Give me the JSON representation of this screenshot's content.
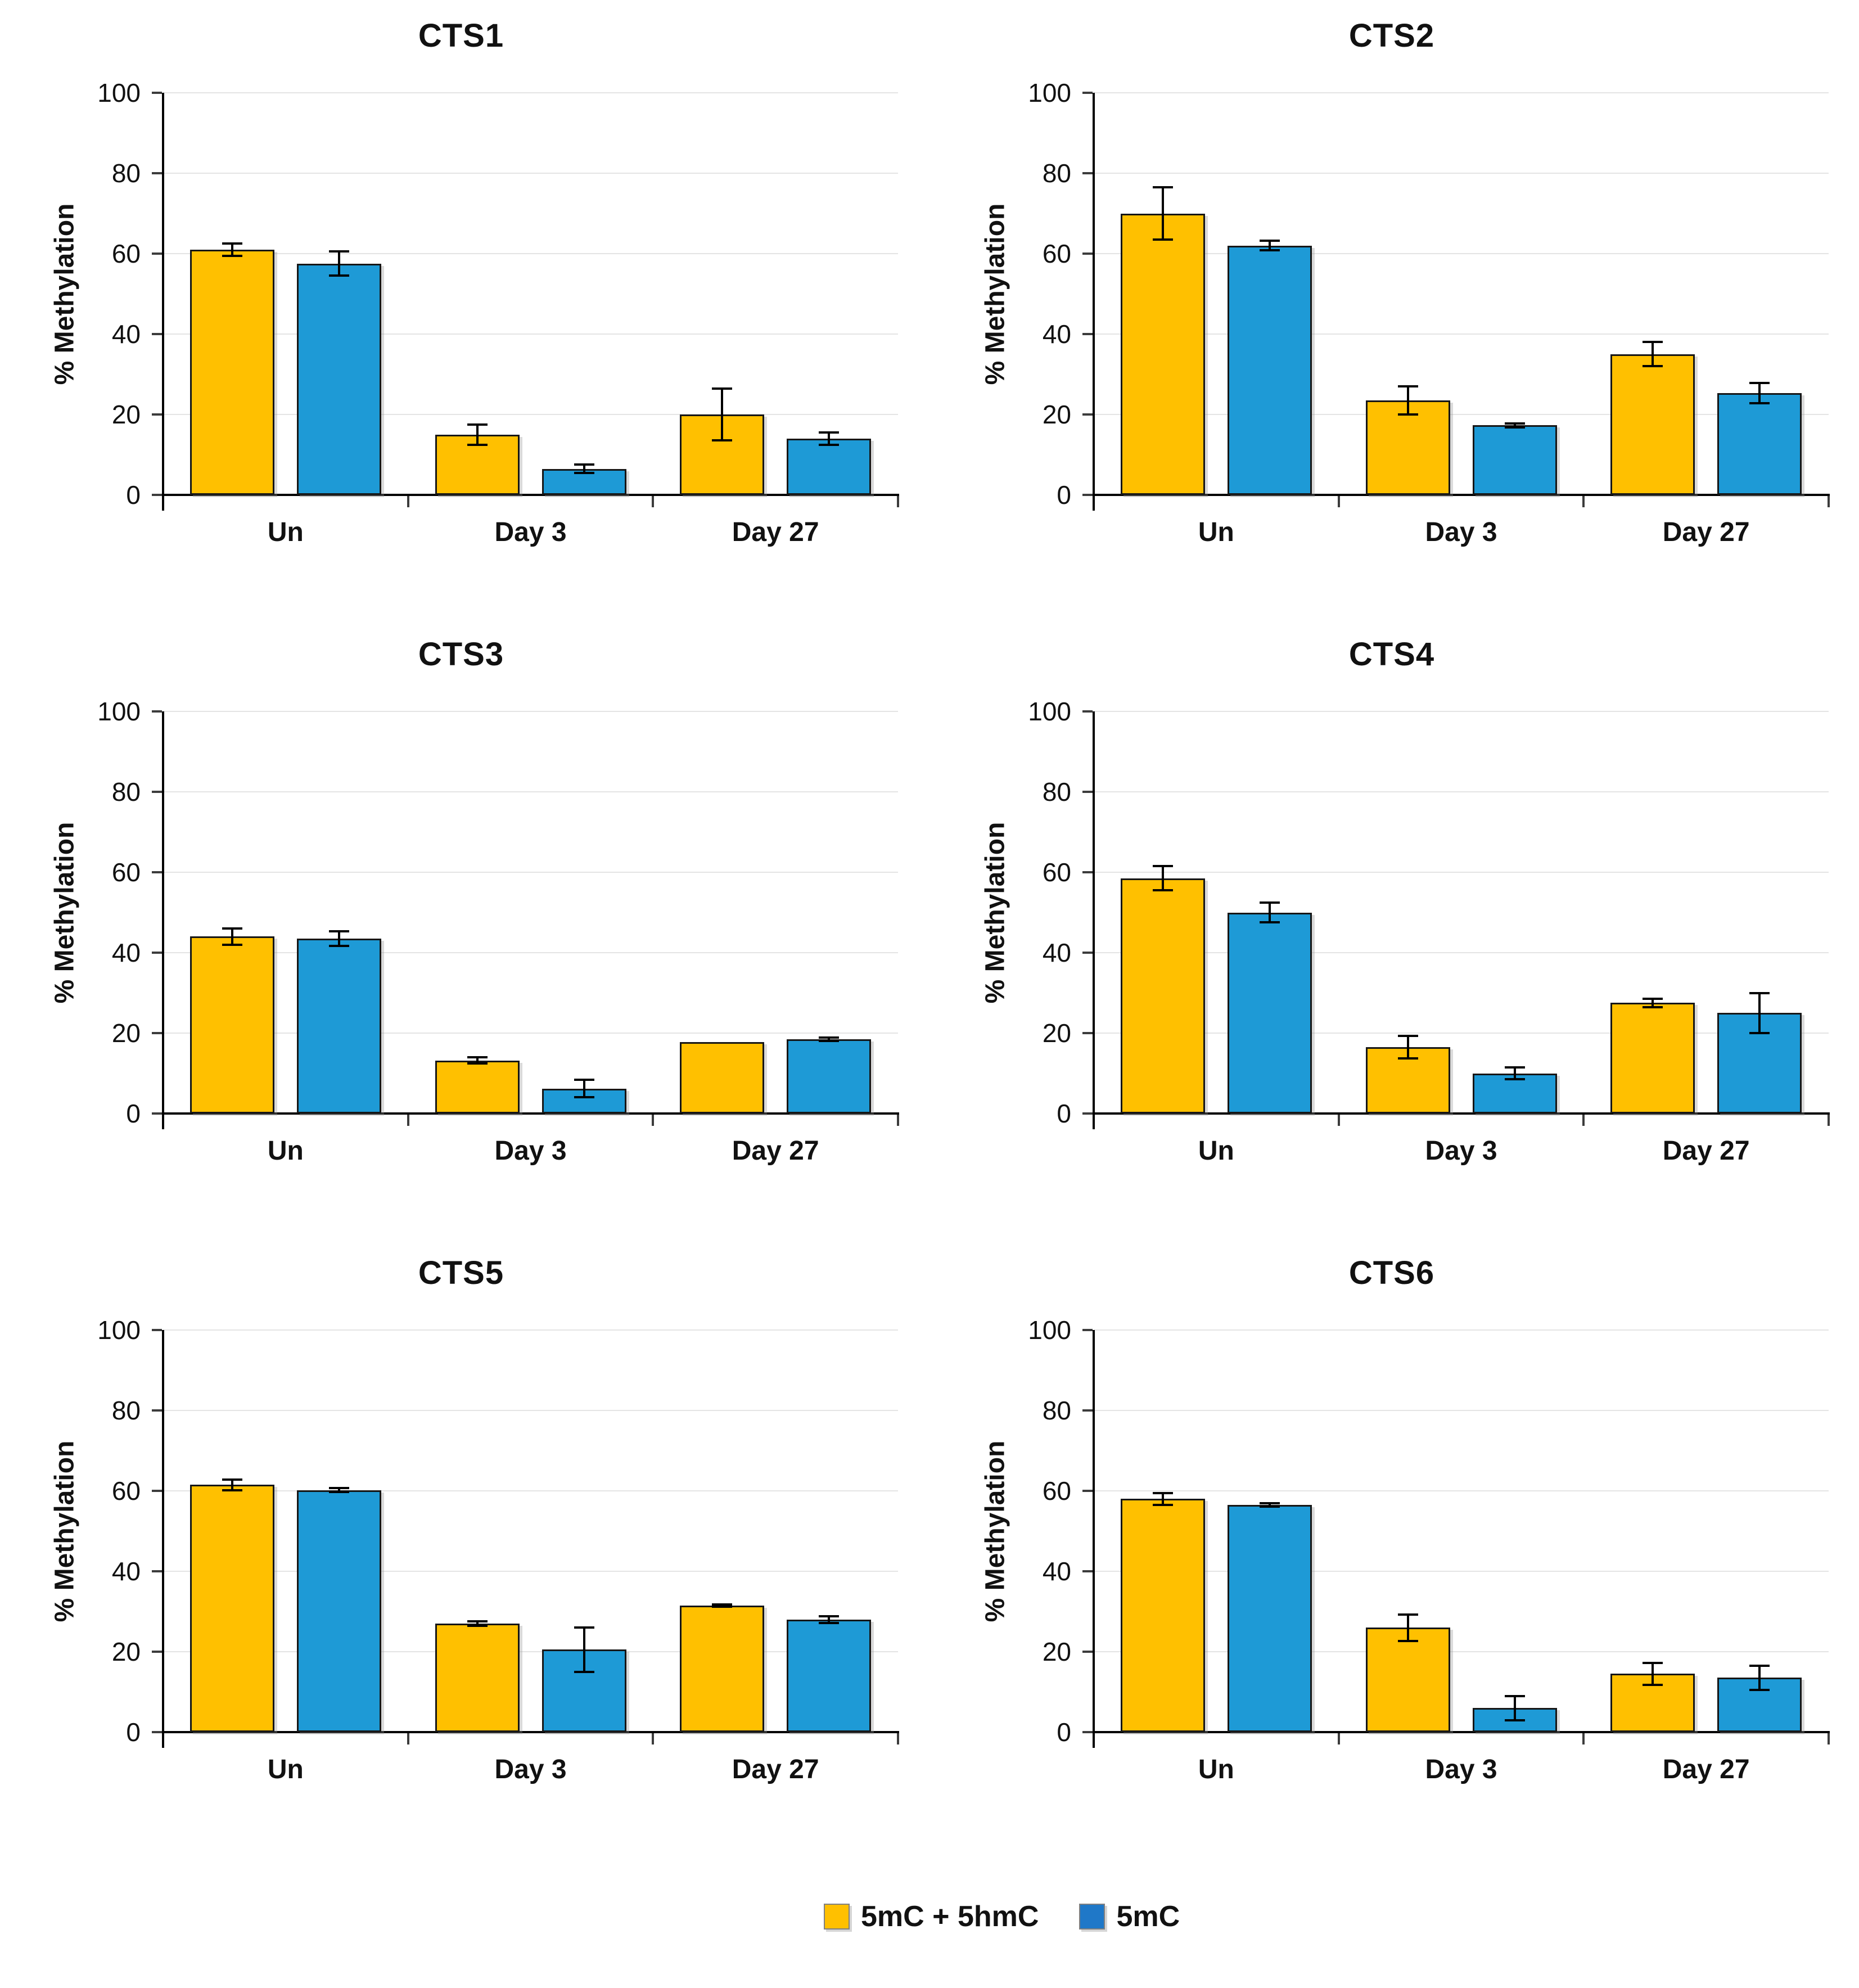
{
  "figure": {
    "background": "#FFFFFF"
  },
  "legend": {
    "items": [
      {
        "label": "5mC + 5hmC",
        "color": "#FFC000"
      },
      {
        "label": "5mC",
        "color": "#1F78C8"
      }
    ]
  },
  "axis_style": {
    "y_ticks": [
      0,
      20,
      40,
      60,
      80,
      100
    ],
    "grid_color": "#E4E4E4",
    "axis_color": "#000000"
  },
  "colors": {
    "bar_yellow": "#FFC000",
    "bar_blue": "#1E9AD6"
  },
  "chart_data": [
    {
      "type": "bar",
      "title": "CTS1",
      "ylabel": "% Methylation",
      "ylim": [
        0,
        100
      ],
      "categories": [
        "Un",
        "Day 3",
        "Day 27"
      ],
      "grid": true,
      "legend_position": "bottom-shared",
      "series": [
        {
          "name": "5mC + 5hmC",
          "color": "#FFC000",
          "values": [
            61,
            15,
            20
          ],
          "errors": [
            1.5,
            2.5,
            6.5
          ]
        },
        {
          "name": "5mC",
          "color": "#1E9AD6",
          "values": [
            57.5,
            6.5,
            14
          ],
          "errors": [
            3,
            1,
            1.5
          ]
        }
      ]
    },
    {
      "type": "bar",
      "title": "CTS2",
      "ylabel": "% Methylation",
      "ylim": [
        0,
        100
      ],
      "categories": [
        "Un",
        "Day 3",
        "Day 27"
      ],
      "grid": true,
      "legend_position": "bottom-shared",
      "series": [
        {
          "name": "5mC + 5hmC",
          "color": "#FFC000",
          "values": [
            70,
            23.5,
            35
          ],
          "errors": [
            6.5,
            3.5,
            3
          ]
        },
        {
          "name": "5mC",
          "color": "#1E9AD6",
          "values": [
            62,
            17.3,
            25.3
          ],
          "errors": [
            1.2,
            0.5,
            2.5
          ]
        }
      ]
    },
    {
      "type": "bar",
      "title": "CTS3",
      "ylabel": "% Methylation",
      "ylim": [
        0,
        100
      ],
      "categories": [
        "Un",
        "Day 3",
        "Day 27"
      ],
      "grid": true,
      "legend_position": "bottom-shared",
      "series": [
        {
          "name": "5mC + 5hmC",
          "color": "#FFC000",
          "values": [
            44,
            13.2,
            17.8
          ],
          "errors": [
            2,
            0.8,
            0
          ]
        },
        {
          "name": "5mC",
          "color": "#1E9AD6",
          "values": [
            43.5,
            6.2,
            18.5
          ],
          "errors": [
            1.8,
            2.2,
            0.4
          ]
        }
      ]
    },
    {
      "type": "bar",
      "title": "CTS4",
      "ylabel": "% Methylation",
      "ylim": [
        0,
        100
      ],
      "categories": [
        "Un",
        "Day 3",
        "Day 27"
      ],
      "grid": true,
      "legend_position": "bottom-shared",
      "series": [
        {
          "name": "5mC + 5hmC",
          "color": "#FFC000",
          "values": [
            58.5,
            16.5,
            27.5
          ],
          "errors": [
            3,
            2.8,
            1
          ]
        },
        {
          "name": "5mC",
          "color": "#1E9AD6",
          "values": [
            50,
            10,
            25
          ],
          "errors": [
            2.5,
            1.5,
            5
          ]
        }
      ]
    },
    {
      "type": "bar",
      "title": "CTS5",
      "ylabel": "% Methylation",
      "ylim": [
        0,
        100
      ],
      "categories": [
        "Un",
        "Day 3",
        "Day 27"
      ],
      "grid": true,
      "legend_position": "bottom-shared",
      "series": [
        {
          "name": "5mC + 5hmC",
          "color": "#FFC000",
          "values": [
            61.5,
            27,
            31.5
          ],
          "errors": [
            1.3,
            0.5,
            0.3
          ]
        },
        {
          "name": "5mC",
          "color": "#1E9AD6",
          "values": [
            60.2,
            20.5,
            28
          ],
          "errors": [
            0.5,
            5.5,
            0.8
          ]
        }
      ]
    },
    {
      "type": "bar",
      "title": "CTS6",
      "ylabel": "% Methylation",
      "ylim": [
        0,
        100
      ],
      "categories": [
        "Un",
        "Day 3",
        "Day 27"
      ],
      "grid": true,
      "legend_position": "bottom-shared",
      "series": [
        {
          "name": "5mC + 5hmC",
          "color": "#FFC000",
          "values": [
            58,
            26,
            14.5
          ],
          "errors": [
            1.5,
            3.3,
            2.7
          ]
        },
        {
          "name": "5mC",
          "color": "#1E9AD6",
          "values": [
            56.5,
            6,
            13.5
          ],
          "errors": [
            0.4,
            3,
            3
          ]
        }
      ]
    }
  ]
}
